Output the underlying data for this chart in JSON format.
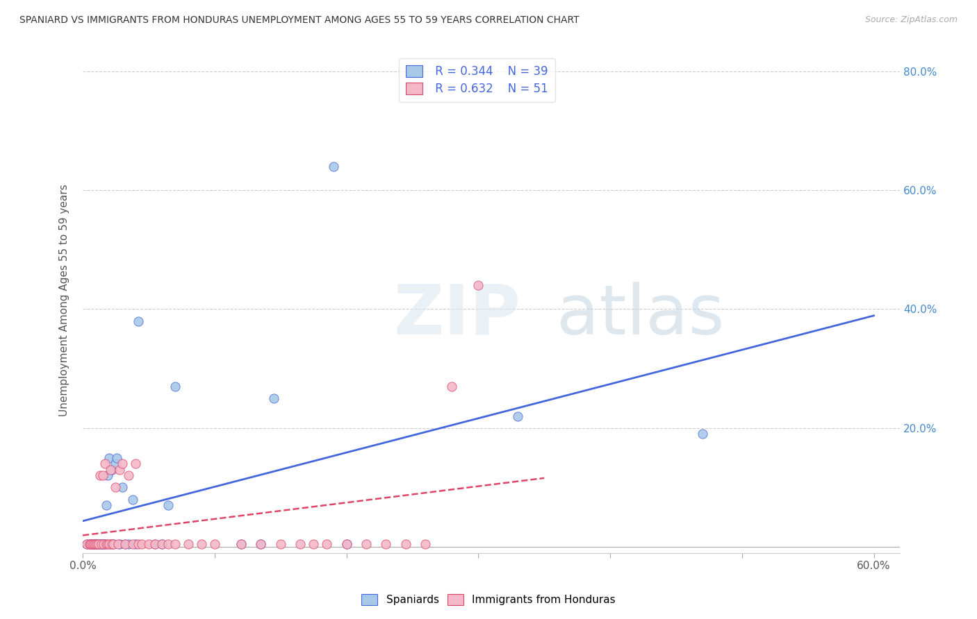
{
  "title": "SPANIARD VS IMMIGRANTS FROM HONDURAS UNEMPLOYMENT AMONG AGES 55 TO 59 YEARS CORRELATION CHART",
  "source": "Source: ZipAtlas.com",
  "ylabel": "Unemployment Among Ages 55 to 59 years",
  "xlim": [
    0.0,
    0.62
  ],
  "ylim": [
    -0.01,
    0.84
  ],
  "xticks": [
    0.0,
    0.1,
    0.2,
    0.3,
    0.4,
    0.5,
    0.6
  ],
  "xtick_labels": [
    "0.0%",
    "",
    "",
    "",
    "",
    "",
    "60.0%"
  ],
  "yticks": [
    0.0,
    0.2,
    0.4,
    0.6,
    0.8
  ],
  "ytick_labels_right": [
    "",
    "20.0%",
    "40.0%",
    "60.0%",
    "80.0%"
  ],
  "legend_r1": "R = 0.344",
  "legend_n1": "N = 39",
  "legend_r2": "R = 0.632",
  "legend_n2": "N = 51",
  "spaniards_color": "#a8c8e8",
  "honduras_color": "#f4b8c8",
  "trendline1_color": "#4466dd",
  "trendline2_color": "#dd4466",
  "spaniards_x": [
    0.003,
    0.005,
    0.007,
    0.008,
    0.009,
    0.01,
    0.011,
    0.012,
    0.013,
    0.014,
    0.015,
    0.016,
    0.017,
    0.018,
    0.019,
    0.02,
    0.021,
    0.022,
    0.023,
    0.025,
    0.026,
    0.028,
    0.03,
    0.032,
    0.035,
    0.038,
    0.04,
    0.042,
    0.055,
    0.06,
    0.065,
    0.07,
    0.12,
    0.135,
    0.145,
    0.19,
    0.2,
    0.33,
    0.47
  ],
  "spaniards_y": [
    0.005,
    0.005,
    0.005,
    0.005,
    0.005,
    0.005,
    0.005,
    0.005,
    0.005,
    0.005,
    0.005,
    0.005,
    0.005,
    0.07,
    0.12,
    0.15,
    0.005,
    0.13,
    0.005,
    0.14,
    0.15,
    0.005,
    0.1,
    0.005,
    0.005,
    0.08,
    0.005,
    0.38,
    0.005,
    0.005,
    0.07,
    0.27,
    0.005,
    0.005,
    0.25,
    0.64,
    0.005,
    0.22,
    0.19
  ],
  "honduras_x": [
    0.003,
    0.005,
    0.006,
    0.007,
    0.008,
    0.009,
    0.01,
    0.011,
    0.012,
    0.013,
    0.014,
    0.015,
    0.016,
    0.017,
    0.018,
    0.019,
    0.02,
    0.021,
    0.022,
    0.023,
    0.025,
    0.027,
    0.028,
    0.03,
    0.032,
    0.035,
    0.038,
    0.04,
    0.042,
    0.045,
    0.05,
    0.055,
    0.06,
    0.065,
    0.07,
    0.08,
    0.09,
    0.1,
    0.12,
    0.135,
    0.15,
    0.165,
    0.175,
    0.185,
    0.2,
    0.215,
    0.23,
    0.245,
    0.26,
    0.28,
    0.3
  ],
  "honduras_y": [
    0.005,
    0.005,
    0.005,
    0.005,
    0.005,
    0.005,
    0.005,
    0.005,
    0.005,
    0.12,
    0.005,
    0.12,
    0.005,
    0.14,
    0.005,
    0.005,
    0.005,
    0.13,
    0.005,
    0.005,
    0.1,
    0.005,
    0.13,
    0.14,
    0.005,
    0.12,
    0.005,
    0.14,
    0.005,
    0.005,
    0.005,
    0.005,
    0.005,
    0.005,
    0.005,
    0.005,
    0.005,
    0.005,
    0.005,
    0.005,
    0.005,
    0.005,
    0.005,
    0.005,
    0.005,
    0.005,
    0.005,
    0.005,
    0.005,
    0.27,
    0.44
  ]
}
